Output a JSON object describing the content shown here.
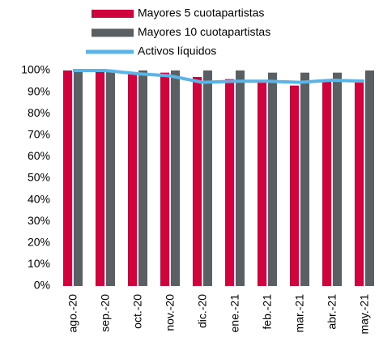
{
  "chart_data": {
    "type": "bar",
    "categories": [
      "ago.-20",
      "sep.-20",
      "oct.-20",
      "nov.-20",
      "dic.-20",
      "ene.-21",
      "feb.-21",
      "mar.-21",
      "abr.-21",
      "may.-21"
    ],
    "series": [
      {
        "name": "Mayores 5 cuotapartistas",
        "color": "#d0043c",
        "type": "bar",
        "values": [
          100,
          100,
          99,
          99,
          97,
          96,
          95,
          93,
          95,
          95
        ]
      },
      {
        "name": "Mayores 10 cuotapartistas",
        "color": "#5a5f63",
        "type": "bar",
        "values": [
          100,
          100,
          100,
          100,
          100,
          100,
          99,
          99,
          99,
          100
        ]
      },
      {
        "name": "Activos líquidos",
        "color": "#5bb4e6",
        "type": "line",
        "values": [
          100,
          100,
          98.5,
          97.5,
          94.5,
          95,
          95,
          94.5,
          95.5,
          95
        ]
      }
    ],
    "ylim": [
      0,
      100
    ],
    "yticks": [
      {
        "value": 0,
        "label": "0%"
      },
      {
        "value": 10,
        "label": "10%"
      },
      {
        "value": 20,
        "label": "20%"
      },
      {
        "value": 30,
        "label": "30%"
      },
      {
        "value": 40,
        "label": "40%"
      },
      {
        "value": 50,
        "label": "50%"
      },
      {
        "value": 60,
        "label": "60%"
      },
      {
        "value": 70,
        "label": "70%"
      },
      {
        "value": 80,
        "label": "80%"
      },
      {
        "value": 90,
        "label": "90%"
      },
      {
        "value": 100,
        "label": "100%"
      }
    ],
    "legend": "top"
  }
}
